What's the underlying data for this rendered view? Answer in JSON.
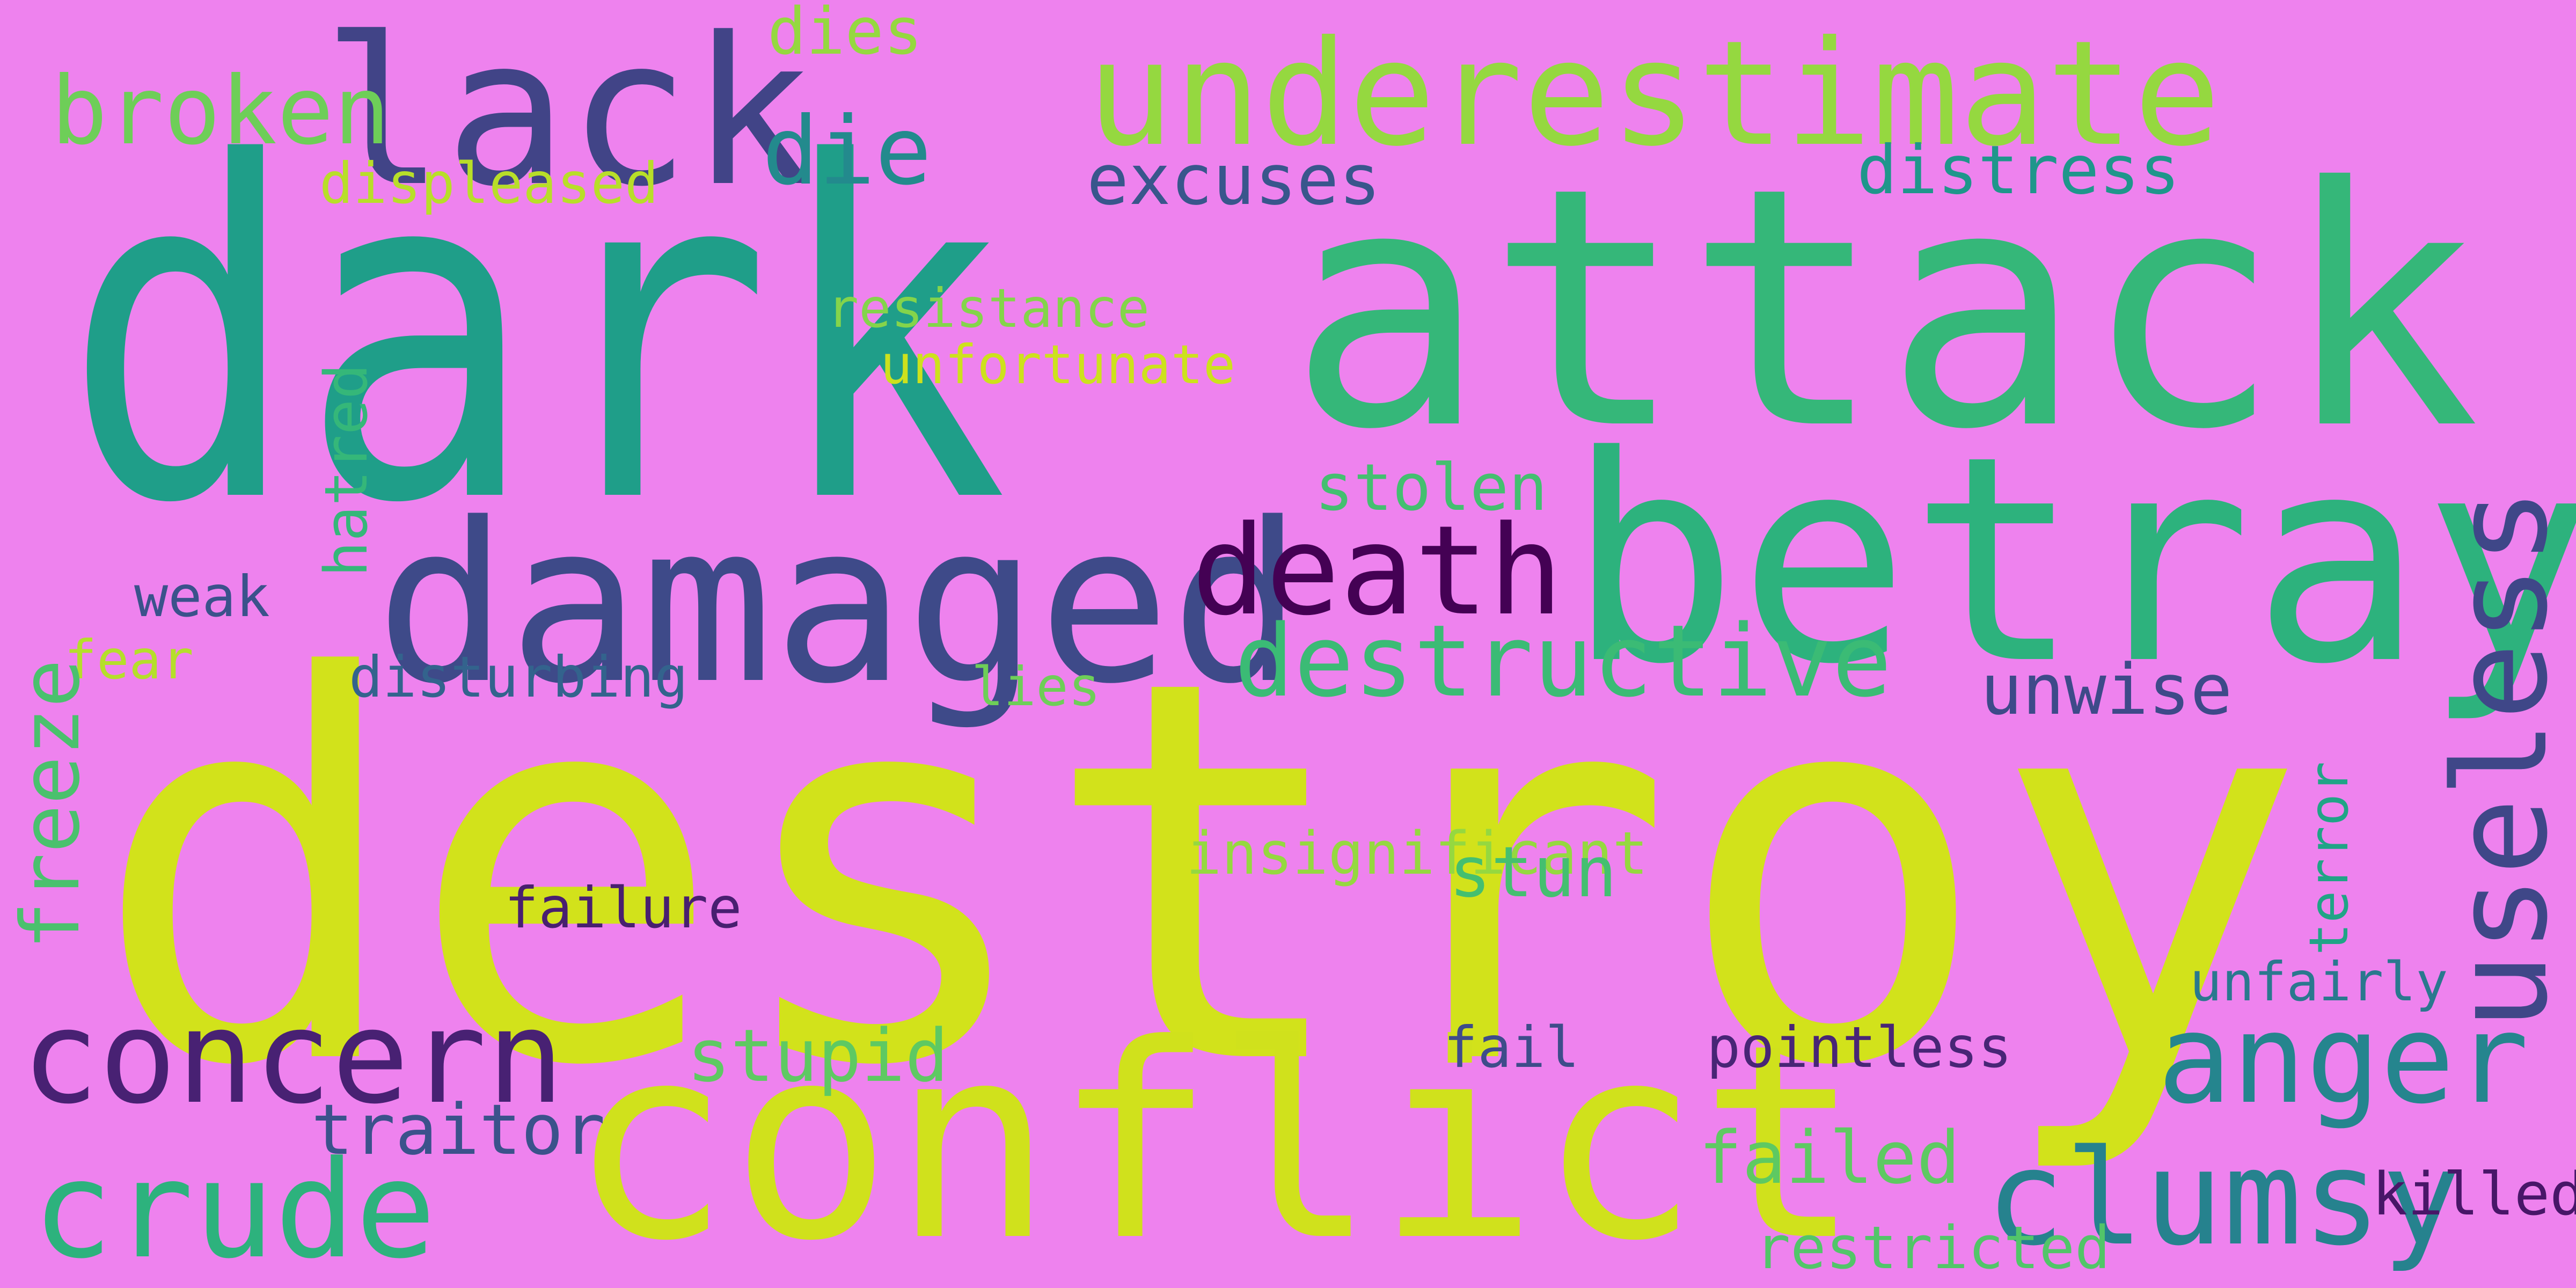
{
  "background_color": "#ee82ee",
  "words": [
    {
      "text": "dark",
      "color": "#1f9e89"
    },
    {
      "text": "attack",
      "color": "#35b779"
    },
    {
      "text": "destroy",
      "color": "#d2e21b"
    },
    {
      "text": "betray",
      "color": "#2db27d"
    },
    {
      "text": "damaged",
      "color": "#3e4a89"
    },
    {
      "text": "lack",
      "color": "#414487"
    },
    {
      "text": "underestimate",
      "color": "#95d840"
    },
    {
      "text": "conflict",
      "color": "#d0e11c"
    },
    {
      "text": "death",
      "color": "#440154"
    },
    {
      "text": "destructive",
      "color": "#3bbb75"
    },
    {
      "text": "concern",
      "color": "#482173"
    },
    {
      "text": "anger",
      "color": "#25858e"
    },
    {
      "text": "clumsy",
      "color": "#26828e"
    },
    {
      "text": "crude",
      "color": "#2db27d"
    },
    {
      "text": "broken",
      "color": "#6ece58"
    },
    {
      "text": "die",
      "color": "#238a8d"
    },
    {
      "text": "dies",
      "color": "#95d840"
    },
    {
      "text": "excuses",
      "color": "#39568c"
    },
    {
      "text": "distress",
      "color": "#1f968b"
    },
    {
      "text": "displeased",
      "color": "#b8de29"
    },
    {
      "text": "resistance",
      "color": "#84d44b"
    },
    {
      "text": "unfortunate",
      "color": "#cde11d"
    },
    {
      "text": "stolen",
      "color": "#44bf70"
    },
    {
      "text": "weak",
      "color": "#3b528b"
    },
    {
      "text": "fear",
      "color": "#b5de2b"
    },
    {
      "text": "disturbing",
      "color": "#33638d"
    },
    {
      "text": "lies",
      "color": "#6ece58"
    },
    {
      "text": "unwise",
      "color": "#3e4a89"
    },
    {
      "text": "insignificant",
      "color": "#95d840"
    },
    {
      "text": "stun",
      "color": "#44bf70"
    },
    {
      "text": "failure",
      "color": "#481f70"
    },
    {
      "text": "unfairly",
      "color": "#2a788e"
    },
    {
      "text": "stupid",
      "color": "#5ec962"
    },
    {
      "text": "fail",
      "color": "#3e4c8a"
    },
    {
      "text": "pointless",
      "color": "#482576"
    },
    {
      "text": "traitor",
      "color": "#3b528b"
    },
    {
      "text": "failed",
      "color": "#5ec962"
    },
    {
      "text": "killed",
      "color": "#481668"
    },
    {
      "text": "restricted",
      "color": "#52c569"
    },
    {
      "text": "hatred",
      "color": "#35b779"
    },
    {
      "text": "freeze",
      "color": "#4ac16d"
    },
    {
      "text": "terror",
      "color": "#20a486"
    },
    {
      "text": "useless",
      "color": "#3f4788"
    }
  ]
}
